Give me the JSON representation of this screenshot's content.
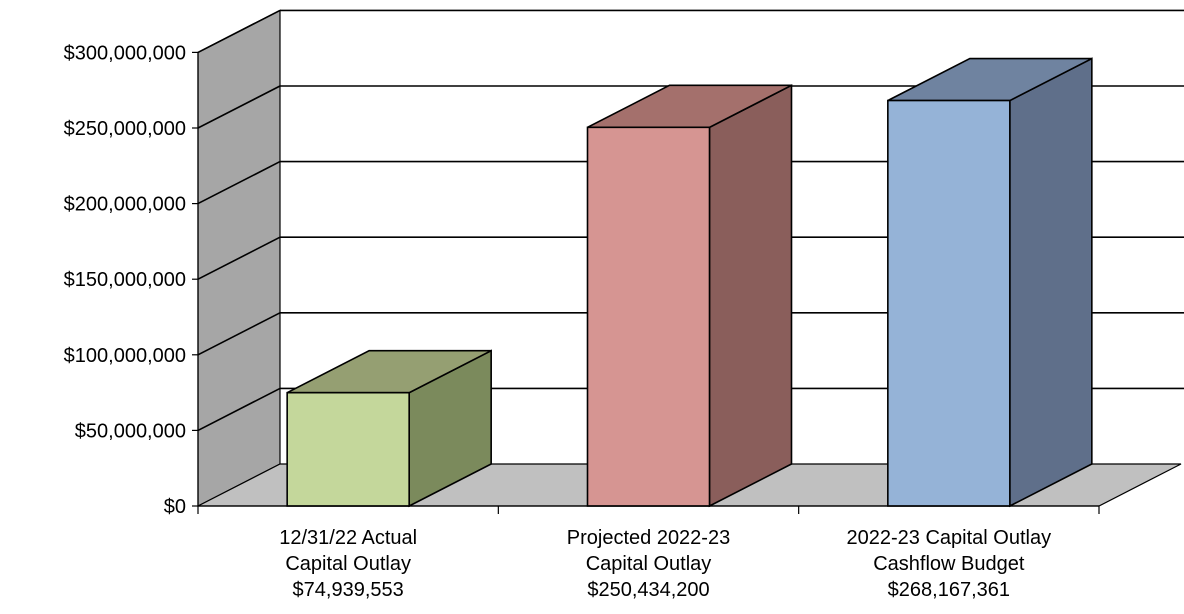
{
  "chart_data": {
    "type": "bar",
    "style": "3d-column",
    "title": "",
    "xlabel": "",
    "ylabel": "",
    "ylim": [
      0,
      300000000
    ],
    "y_ticks": [
      0,
      50000000,
      100000000,
      150000000,
      200000000,
      250000000,
      300000000
    ],
    "y_tick_labels": [
      "$0",
      "$50,000,000",
      "$100,000,000",
      "$150,000,000",
      "$200,000,000",
      "$250,000,000",
      "$300,000,000"
    ],
    "grid": true,
    "legend": "none",
    "categories": [
      [
        "12/31/22 Actual",
        "Capital Outlay",
        "$74,939,553"
      ],
      [
        "Projected 2022-23",
        "Capital Outlay",
        "$250,434,200"
      ],
      [
        "2022-23 Capital Outlay",
        "Cashflow Budget",
        "$268,167,361"
      ]
    ],
    "values": [
      74939553,
      250434200,
      268167361
    ],
    "colors": [
      {
        "front": "#c4d79b",
        "side": "#7b8a5c",
        "top": "#959f72"
      },
      {
        "front": "#d69592",
        "side": "#8a5e5b",
        "top": "#a4706c"
      },
      {
        "front": "#95b3d7",
        "side": "#5f6f8a",
        "top": "#6f83a0"
      }
    ],
    "wall_color": "#a6a6a6",
    "floor_color": "#c0c0c0"
  }
}
